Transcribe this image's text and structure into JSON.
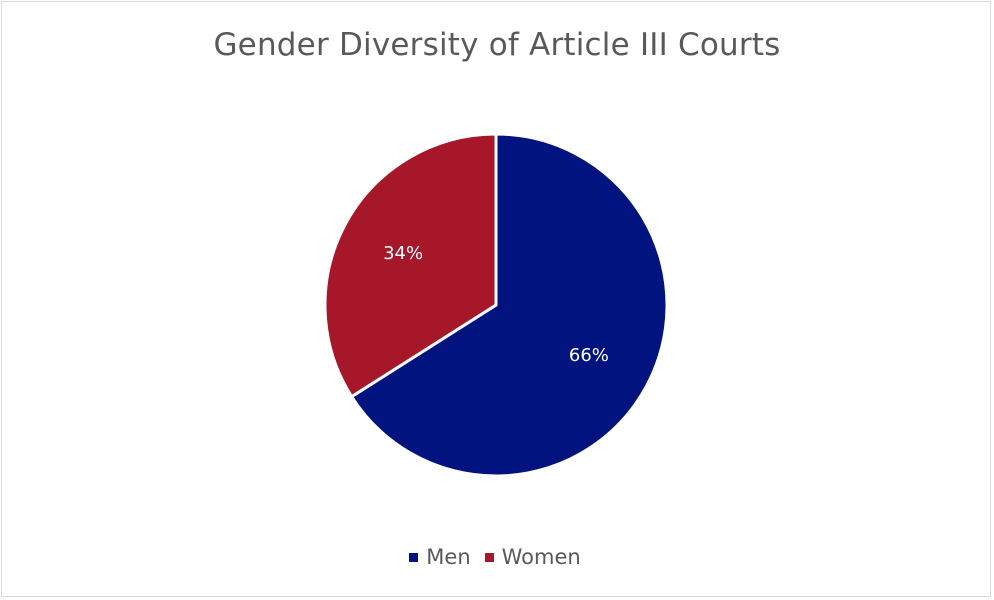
{
  "chart_data": {
    "type": "pie",
    "title": "Gender Diversity of Article III Courts",
    "categories": [
      "Men",
      "Women"
    ],
    "values": [
      66,
      34
    ],
    "data_labels": [
      "66%",
      "34%"
    ],
    "colors": [
      "#00137f",
      "#a6172a"
    ],
    "legend_placement": "bottom"
  }
}
